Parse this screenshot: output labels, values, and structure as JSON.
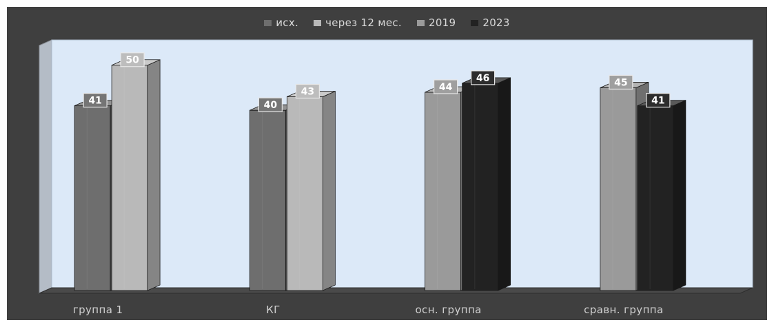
{
  "chart_data": {
    "type": "bar",
    "style": "3d-clustered",
    "categories": [
      "группа 1",
      "КГ",
      "осн. группа",
      "сравн. группа"
    ],
    "series": [
      {
        "name": "исх.",
        "color": "#6e6e6e",
        "values": [
          41,
          40,
          null,
          null
        ]
      },
      {
        "name": "через 12 мес.",
        "color": "#b9b9b9",
        "values": [
          50,
          43,
          null,
          null
        ]
      },
      {
        "name": "2019",
        "color": "#9a9a9a",
        "values": [
          null,
          null,
          44,
          45
        ]
      },
      {
        "name": "2023",
        "color": "#222222",
        "values": [
          null,
          null,
          46,
          41
        ]
      }
    ],
    "ylim": [
      0,
      55
    ],
    "legend_position": "top-center",
    "grid": false,
    "axis_labels_visible": false,
    "colors": {
      "background": "#3f3f3f",
      "plot_wall": "#dce9f8",
      "floor": "#4a4a4a"
    }
  }
}
